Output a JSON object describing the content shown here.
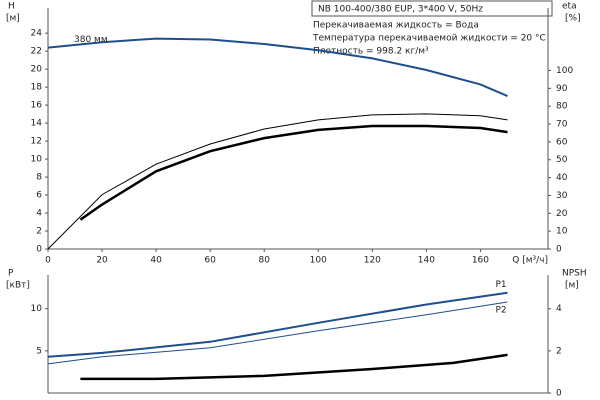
{
  "chart_data": [
    {
      "type": "line",
      "y_label": "H",
      "y_unit": "[м]",
      "y2_label": "eta",
      "y2_unit": "[%]",
      "x_label": "Q [м³/ч]",
      "info_title": "NB 100-400/380 EUP, 3*400 V, 50Hz",
      "notes": [
        "Перекачиваемая жидкость = Вода",
        "Температура перекачиваемой жидкости = 20 °C",
        "Плотность = 998.2 кг/м³"
      ],
      "xlim": [
        0,
        185
      ],
      "xticks": [
        0,
        20,
        40,
        60,
        80,
        100,
        120,
        140,
        160
      ],
      "ylim": [
        0,
        26.8
      ],
      "yticks": [
        0,
        2,
        4,
        6,
        8,
        10,
        12,
        14,
        16,
        18,
        20,
        22,
        24
      ],
      "y2lim": [
        0,
        135
      ],
      "y2ticks": [
        0,
        10,
        20,
        30,
        40,
        50,
        60,
        70,
        80,
        90,
        100
      ],
      "series": [
        {
          "name": "380 мм",
          "color": "#1f4e8c",
          "line_width": 2,
          "axis": "y",
          "x": [
            0,
            20,
            40,
            60,
            80,
            100,
            120,
            140,
            160,
            170
          ],
          "values": [
            22.4,
            23.0,
            23.4,
            23.3,
            22.8,
            22.1,
            21.2,
            19.9,
            18.3,
            17.0
          ]
        },
        {
          "color": "#000000",
          "line_width": 1,
          "axis": "y2",
          "x": [
            0,
            20,
            40,
            60,
            80,
            100,
            120,
            140,
            160,
            170
          ],
          "values": [
            0,
            30.5,
            47.5,
            58.8,
            67.2,
            72.3,
            75.1,
            75.7,
            74.6,
            72.3
          ]
        },
        {
          "color": "#000000",
          "line_width": 2.5,
          "axis": "y2",
          "x": [
            12,
            20,
            40,
            60,
            80,
            100,
            120,
            140,
            160,
            170
          ],
          "values": [
            16.4,
            24.9,
            43.5,
            54.8,
            62.1,
            66.7,
            68.9,
            68.9,
            67.8,
            65.5
          ]
        }
      ]
    },
    {
      "type": "line",
      "y_label": "P",
      "y_unit": "[кВт]",
      "y2_label": "NPSH",
      "y2_unit": "[м]",
      "xlim": [
        0,
        185
      ],
      "ylim": [
        0,
        14
      ],
      "yticks": [
        5,
        10
      ],
      "y2lim": [
        0,
        5.6
      ],
      "y2ticks": [
        0,
        2,
        4
      ],
      "series": [
        {
          "name": "P1",
          "color": "#1f4e8c",
          "line_width": 2,
          "axis": "y",
          "x": [
            0,
            20,
            60,
            100,
            140,
            170
          ],
          "values": [
            4.3,
            4.76,
            6.07,
            8.33,
            10.5,
            11.9
          ]
        },
        {
          "name": "P2",
          "color": "#1f4e8c",
          "line_width": 1,
          "axis": "y",
          "x": [
            0,
            20,
            60,
            100,
            140,
            170
          ],
          "values": [
            3.45,
            4.3,
            5.36,
            7.38,
            9.29,
            10.8
          ]
        },
        {
          "color": "#000000",
          "line_width": 2.5,
          "axis": "y2",
          "x": [
            12,
            40,
            80,
            120,
            150,
            170
          ],
          "values": [
            0.67,
            0.67,
            0.81,
            1.14,
            1.43,
            1.81
          ]
        }
      ]
    }
  ]
}
